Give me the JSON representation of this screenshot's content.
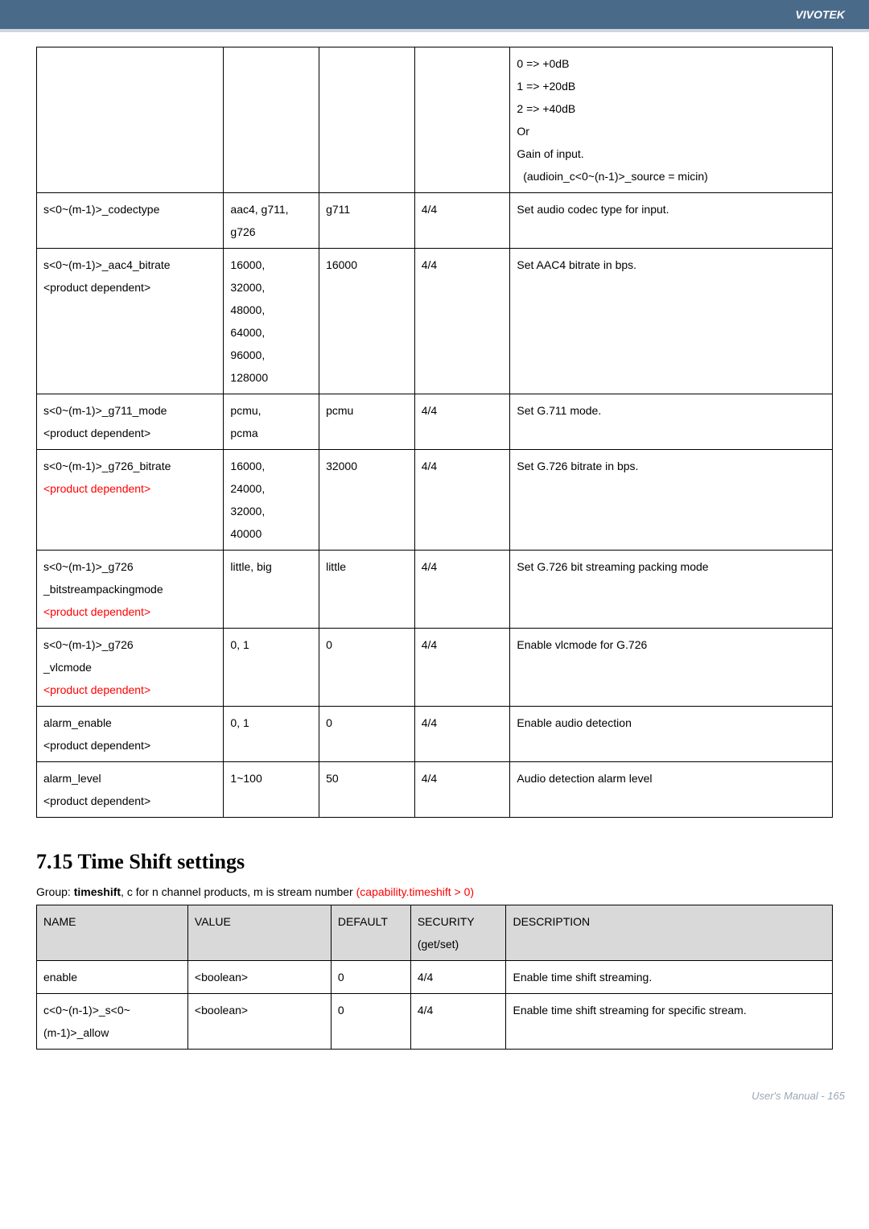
{
  "header": {
    "brand": "VIVOTEK"
  },
  "table1": {
    "col_widths": [
      "23.5%",
      "12%",
      "12%",
      "12%",
      "40.5%"
    ],
    "rows": [
      {
        "c1": "",
        "c2": "",
        "c3": "",
        "c4": "",
        "c5_lines": [
          "0 => +0dB",
          "1 => +20dB",
          "2 => +40dB",
          "Or",
          "Gain of input.",
          "  (audioin_c<0~(n-1)>_source = micin)"
        ]
      },
      {
        "c1_lines": [
          "s<0~(m-1)>_codectype"
        ],
        "c2_lines": [
          "aac4, g711, g726"
        ],
        "c3": "g711",
        "c4": "4/4",
        "c5": "Set audio codec type for input."
      },
      {
        "c1_lines": [
          "s<0~(m-1)>_aac4_bitrate",
          "<product dependent>"
        ],
        "c2_lines": [
          "16000,",
          "32000,",
          "48000,",
          "64000,",
          "96000,",
          "128000"
        ],
        "c3": "16000",
        "c4": "4/4",
        "c5": "Set AAC4 bitrate in bps."
      },
      {
        "c1_lines": [
          "s<0~(m-1)>_g711_mode",
          "<product dependent>"
        ],
        "c2_lines": [
          "pcmu,",
          "pcma"
        ],
        "c3": "pcmu",
        "c4": "4/4",
        "c5": "Set G.711 mode."
      },
      {
        "c1_lines_mixed": [
          {
            "t": "s<0~(m-1)>_g726_bitrate",
            "red": false
          },
          {
            "t": "<product dependent>",
            "red": true
          }
        ],
        "c2_lines": [
          "16000,",
          "24000,",
          "32000,",
          "40000"
        ],
        "c3": "32000",
        "c4": "4/4",
        "c5": "Set G.726 bitrate in bps."
      },
      {
        "c1_lines_mixed": [
          {
            "t": "s<0~(m-1)>_g726",
            "red": false
          },
          {
            "t": "_bitstreampackingmode",
            "red": false
          },
          {
            "t": "<product dependent>",
            "red": true
          }
        ],
        "c2": "little, big",
        "c3": "little",
        "c4": "4/4",
        "c5_lines": [
          "Set G.726 bit streaming packing mode"
        ]
      },
      {
        "c1_lines_mixed": [
          {
            "t": "s<0~(m-1)>_g726",
            "red": false
          },
          {
            "t": "_vlcmode",
            "red": false
          },
          {
            "t": "<product dependent>",
            "red": true
          }
        ],
        "c2": "0, 1",
        "c3": "0",
        "c4": "4/4",
        "c5": "Enable vlcmode for G.726"
      },
      {
        "c1_lines": [
          "alarm_enable",
          "<product dependent>"
        ],
        "c2": "0, 1",
        "c3": "0",
        "c4": "4/4",
        "c5": "Enable audio detection"
      },
      {
        "c1_lines": [
          "alarm_level",
          "<product dependent>"
        ],
        "c2": "1~100",
        "c3": "50",
        "c4": "4/4",
        "c5": "Audio detection alarm level"
      }
    ]
  },
  "section": {
    "title": "7.15 Time Shift settings",
    "group_prefix": "Group: ",
    "group_bold": "timeshift",
    "group_mid": ", c for n channel products, m is stream number ",
    "group_red": "(capability.timeshift > 0)"
  },
  "table2": {
    "headers": {
      "name": "NAME",
      "value": "VALUE",
      "default": "DEFAULT",
      "security": "SECURITY",
      "security2": "(get/set)",
      "description": "DESCRIPTION"
    },
    "rows": [
      {
        "name": "enable",
        "value": "<boolean>",
        "default": "0",
        "security": "4/4",
        "description": "Enable time shift streaming."
      },
      {
        "name_lines": [
          "c<0~(n-1)>_s<0~",
          "(m-1)>_allow"
        ],
        "value": "<boolean>",
        "default": "0",
        "security": "4/4",
        "description_lines": [
          "Enable time shift streaming for specific stream."
        ]
      }
    ]
  },
  "footer": {
    "text": "User's Manual - 165"
  }
}
